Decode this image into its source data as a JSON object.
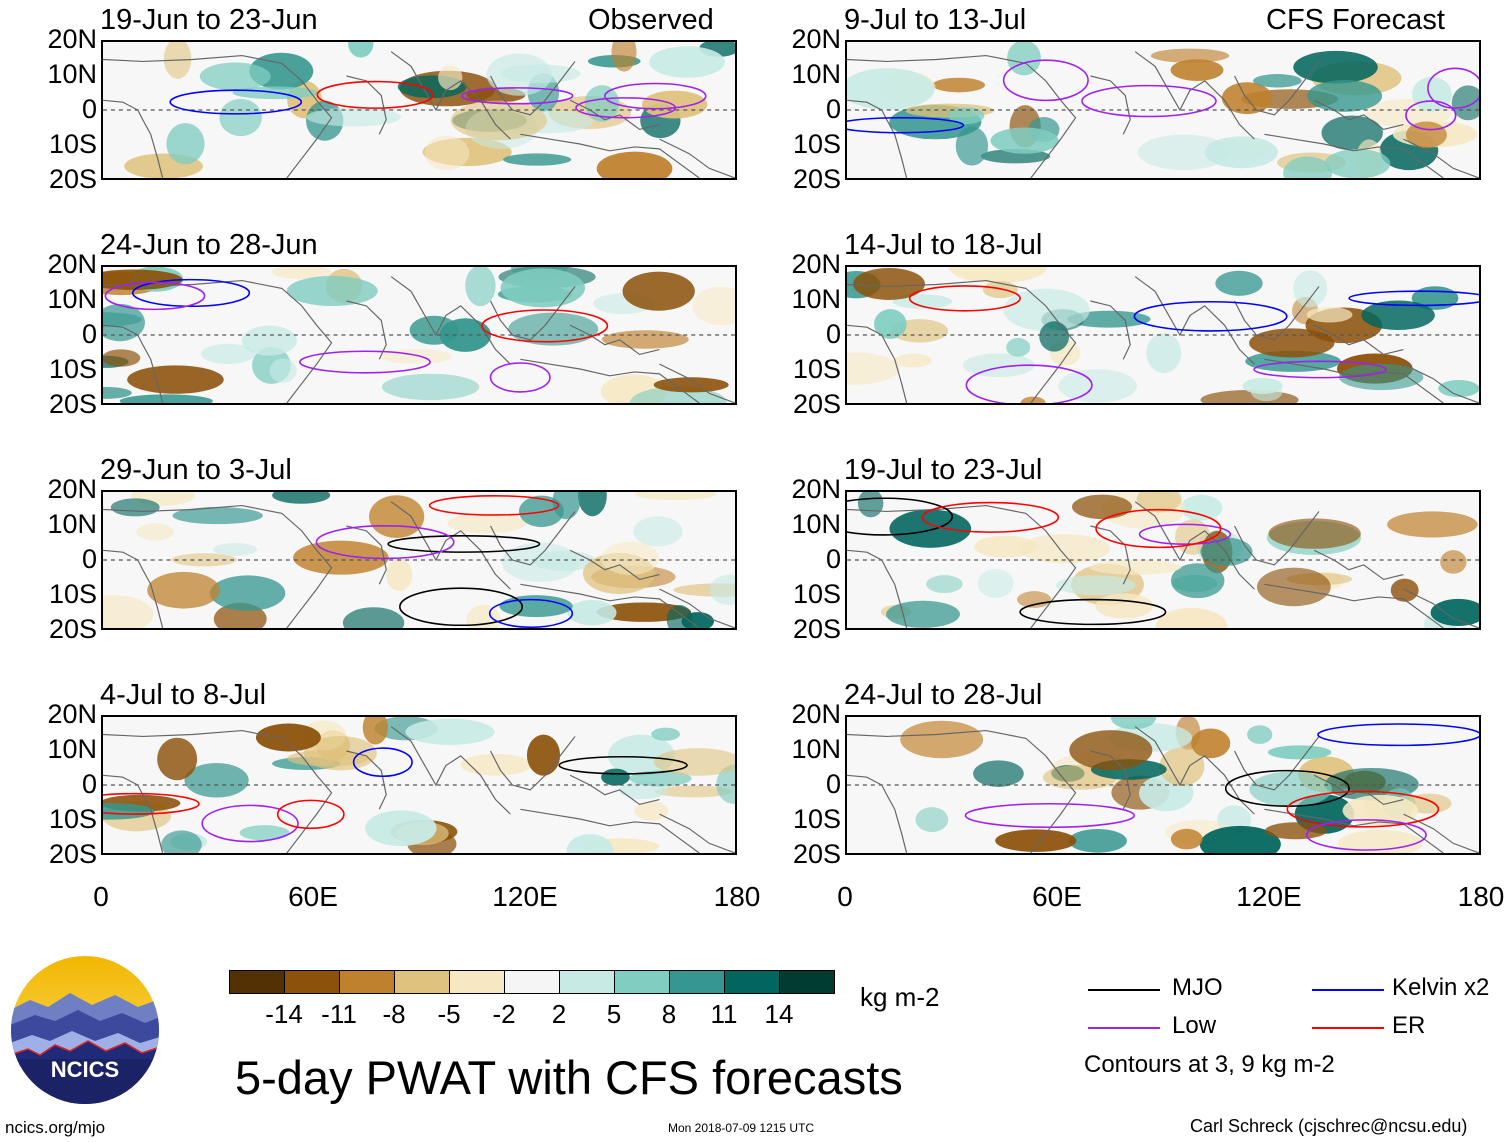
{
  "observed_label": "Observed",
  "forecast_label": "CFS Forecast",
  "panels": [
    {
      "title": "19-Jun to 23-Jun",
      "column": "Observed"
    },
    {
      "title": "24-Jun to 28-Jun",
      "column": "Observed"
    },
    {
      "title": "29-Jun to 3-Jul",
      "column": "Observed"
    },
    {
      "title": "4-Jul to 8-Jul",
      "column": "Observed"
    },
    {
      "title": "9-Jul to 13-Jul",
      "column": "CFS Forecast"
    },
    {
      "title": "14-Jul to 18-Jul",
      "column": "CFS Forecast"
    },
    {
      "title": "19-Jul to 23-Jul",
      "column": "CFS Forecast"
    },
    {
      "title": "24-Jul to 28-Jul",
      "column": "CFS Forecast"
    }
  ],
  "lat_labels": [
    "20N",
    "10N",
    "0",
    "10S",
    "20S"
  ],
  "lon_labels": [
    "0",
    "60E",
    "120E",
    "180"
  ],
  "colorbar": {
    "ticks": [
      "-14",
      "-11",
      "-8",
      "-5",
      "-2",
      "2",
      "5",
      "8",
      "11",
      "14"
    ],
    "colors": [
      "#543005",
      "#8c510a",
      "#bf812d",
      "#dfc27d",
      "#f6e8c3",
      "#f5f5f5",
      "#c7eae5",
      "#80cdc1",
      "#35978f",
      "#01665e",
      "#003c30"
    ],
    "units": "kg m-2"
  },
  "legend": {
    "items": [
      {
        "label": "MJO",
        "color": "#000000"
      },
      {
        "label": "Kelvin x2",
        "color": "#0000ff"
      },
      {
        "label": "Low",
        "color": "#a020f0"
      },
      {
        "label": "ER",
        "color": "#ff0000"
      }
    ],
    "note": "Contours at 3, 9 kg m-2"
  },
  "main_title": "5-day PWAT with CFS forecasts",
  "logo_text": "NCICS",
  "footer": {
    "website": "ncics.org/mjo",
    "timestamp": "Mon 2018-07-09 1215 UTC",
    "author": "Carl Schreck (cjschrec@ncsu.edu)"
  }
}
